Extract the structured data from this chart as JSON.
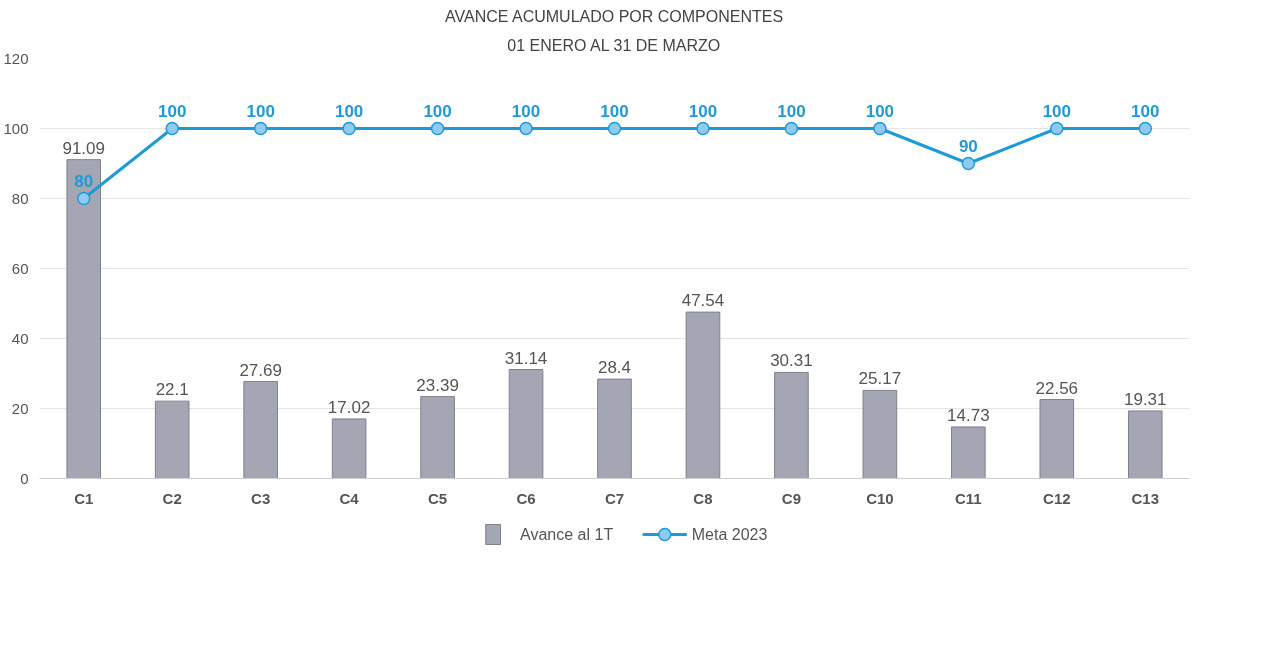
{
  "chart_data": {
    "type": "bar",
    "title": "AVANCE ACUMULADO POR COMPONENTES",
    "subtitle": "01 ENERO AL 31 DE MARZO",
    "categories": [
      "C1",
      "C2",
      "C3",
      "C4",
      "C5",
      "C6",
      "C7",
      "C8",
      "C9",
      "C10",
      "C11",
      "C12",
      "C13"
    ],
    "series": [
      {
        "name": "Avance al 1T",
        "color": "#a4a7b3",
        "values": [
          91.09,
          22.1,
          27.69,
          17.02,
          23.39,
          31.14,
          28.4,
          47.54,
          30.31,
          25.17,
          14.73,
          22.56,
          19.31
        ]
      },
      {
        "name": "Meta 2023",
        "type": "line",
        "color": "#1e9ad8",
        "marker": "circle",
        "values": [
          80,
          100,
          100,
          100,
          100,
          100,
          100,
          100,
          100,
          100,
          90,
          100,
          100
        ]
      }
    ],
    "ylim": [
      0,
      120
    ],
    "yticks": [
      0,
      20,
      40,
      60,
      80,
      100,
      120
    ],
    "grid": "y",
    "legend": "bottom",
    "data_labels": true
  }
}
